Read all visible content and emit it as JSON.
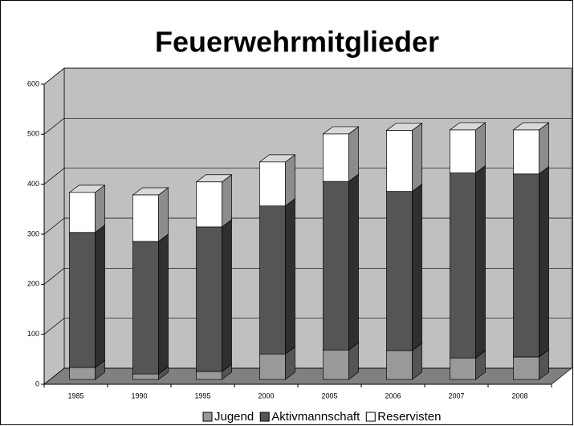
{
  "chart_data": {
    "type": "bar",
    "title": "Feuerwehrmitglieder",
    "stacked": true,
    "three_d": true,
    "categories": [
      "1985",
      "1990",
      "1995",
      "2000",
      "2005",
      "2006",
      "2007",
      "2008"
    ],
    "series": [
      {
        "name": "Jugend",
        "color": "#999999",
        "values": [
          24,
          11,
          16,
          51,
          59,
          58,
          43,
          45
        ]
      },
      {
        "name": "Aktivmannschaft",
        "color": "#555555",
        "values": [
          270,
          265,
          289,
          296,
          337,
          318,
          370,
          366
        ]
      },
      {
        "name": "Reservisten",
        "color": "#ffffff",
        "values": [
          80,
          93,
          90,
          88,
          95,
          122,
          86,
          88
        ]
      }
    ],
    "ylim": [
      0,
      600
    ],
    "yticks": [
      0,
      100,
      200,
      300,
      400,
      500,
      600
    ],
    "grid": true,
    "legend": "bottom"
  }
}
